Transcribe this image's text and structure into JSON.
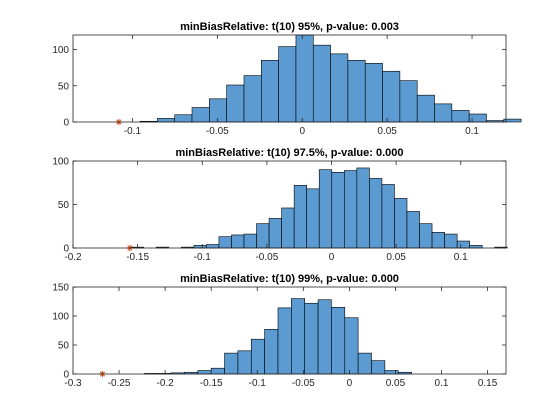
{
  "chart_data": [
    {
      "type": "bar",
      "title": "minBiasRelative: t(10) 95%, p-value: 0.003",
      "xlim": [
        -0.135,
        0.12
      ],
      "ylim": [
        0,
        120
      ],
      "xticks": [
        -0.1,
        -0.05,
        0,
        0.05,
        0.1
      ],
      "xtick_labels": [
        "-0.1",
        "-0.05",
        "0",
        "0.05",
        "0.1"
      ],
      "yticks": [
        0,
        50,
        100
      ],
      "ytick_labels": [
        "0",
        "50",
        "100"
      ],
      "bin_width": 0.0102,
      "bin_edges_start": -0.0955,
      "values": [
        1,
        5,
        10,
        20,
        32,
        51,
        64,
        85,
        104,
        120,
        106,
        94,
        85,
        81,
        70,
        57,
        37,
        25,
        16,
        11,
        2,
        4
      ],
      "marker_x": -0.108
    },
    {
      "type": "bar",
      "title": "minBiasRelative: t(10) 97.5%, p-value: 0.000",
      "xlim": [
        -0.2,
        0.135
      ],
      "ylim": [
        0,
        100
      ],
      "xticks": [
        -0.2,
        -0.15,
        -0.1,
        -0.05,
        0,
        0.05,
        0.1
      ],
      "xtick_labels": [
        "-0.2",
        "-0.15",
        "-0.1",
        "-0.05",
        "0",
        "0.05",
        "0.1"
      ],
      "yticks": [
        0,
        50,
        100
      ],
      "ytick_labels": [
        "0",
        "50",
        "100"
      ],
      "bin_width": 0.0097,
      "bin_edges_start": -0.155,
      "values": [
        1,
        0,
        1,
        0,
        1,
        3,
        4,
        13,
        15,
        16,
        28,
        34,
        46,
        72,
        68,
        90,
        87,
        89,
        92,
        80,
        73,
        57,
        42,
        28,
        18,
        16,
        8,
        3,
        0,
        1
      ],
      "marker_x": -0.156
    },
    {
      "type": "bar",
      "title": "minBiasRelative: t(10) 99%, p-value: 0.000",
      "xlim": [
        -0.3,
        0.17
      ],
      "ylim": [
        0,
        150
      ],
      "xticks": [
        -0.3,
        -0.25,
        -0.2,
        -0.15,
        -0.1,
        -0.05,
        0,
        0.05,
        0.1,
        0.15
      ],
      "xtick_labels": [
        "-0.3",
        "-0.25",
        "-0.2",
        "-0.15",
        "-0.1",
        "-0.05",
        "0",
        "0.05",
        "0.1",
        "0.15"
      ],
      "yticks": [
        0,
        50,
        100,
        150
      ],
      "ytick_labels": [
        "0",
        "50",
        "100",
        "150"
      ],
      "bin_width": 0.0145,
      "bin_edges_start": -0.237,
      "values": [
        0,
        1,
        1,
        2,
        3,
        6,
        10,
        36,
        40,
        60,
        77,
        114,
        130,
        122,
        128,
        115,
        97,
        36,
        23,
        6,
        3
      ],
      "marker_x": -0.268
    }
  ]
}
